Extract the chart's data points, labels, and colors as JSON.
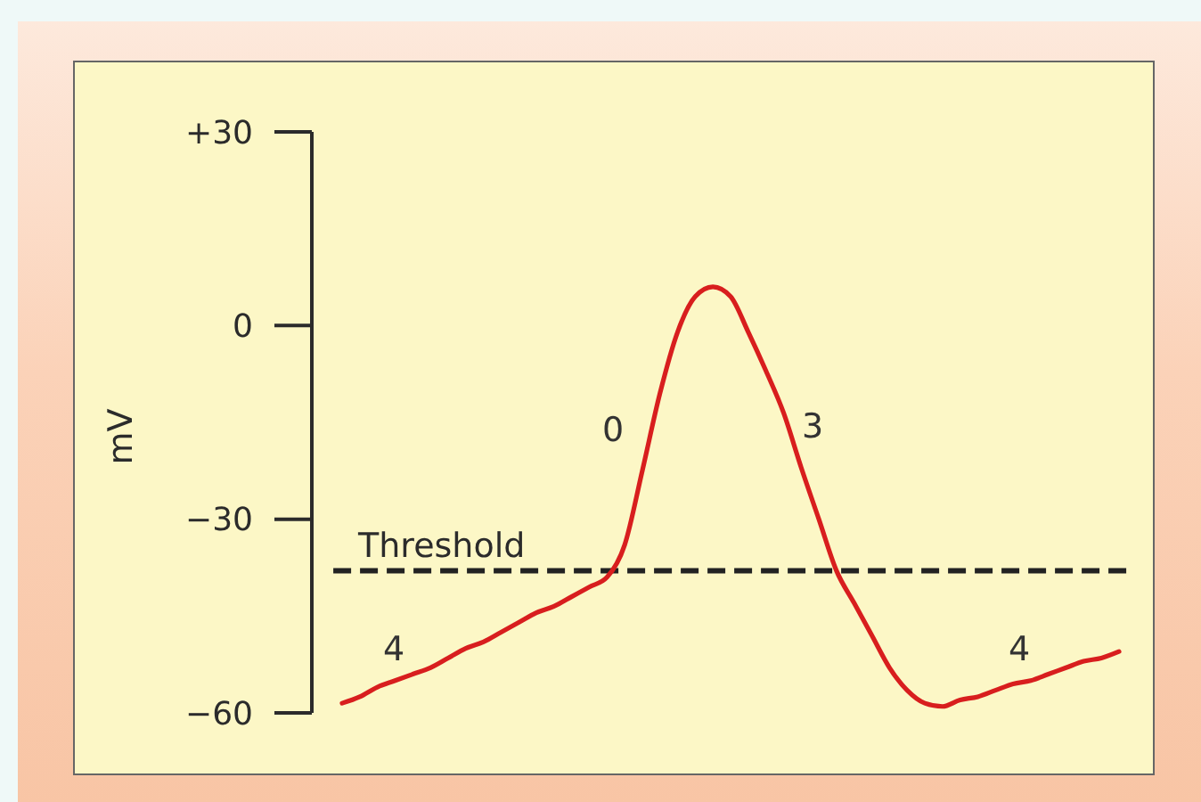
{
  "chart_data": {
    "type": "line",
    "ylabel": "mV",
    "categories": [
      null,
      null,
      null,
      null,
      null,
      null,
      null,
      null,
      null,
      null,
      null,
      null,
      null,
      null,
      null,
      null,
      null,
      null,
      null,
      null,
      null,
      null,
      null,
      null,
      null,
      null,
      null,
      null,
      null,
      null,
      null,
      null,
      null,
      null,
      null,
      null,
      null,
      null,
      null,
      null,
      null,
      null,
      null,
      null,
      null
    ],
    "values": [
      -58.5,
      -57.5,
      -56,
      -55,
      -54,
      -53,
      -51.5,
      -50,
      -49,
      -47.5,
      -46,
      -44.5,
      -43.5,
      -42,
      -40.5,
      -39,
      -34,
      -22.5,
      -10.5,
      -1,
      4.5,
      6,
      4.5,
      -1,
      -7,
      -13.5,
      -22,
      -30,
      -38,
      -43,
      -48,
      -53,
      -56.5,
      -58.5,
      -59,
      -58,
      -57.5,
      -56.5,
      -55.5,
      -55,
      -54,
      -53,
      -52,
      -51.5,
      -50.5
    ],
    "color": "#d81e1e",
    "marker": "none",
    "ylim": [
      -60,
      30
    ],
    "yticks": [
      {
        "value": 30,
        "label": "+30"
      },
      0,
      {
        "value": -30,
        "label": "−30"
      },
      {
        "value": -60,
        "label": "−60"
      }
    ],
    "ref_lines": [
      {
        "axis": "y",
        "value": -38,
        "label": "Threshold",
        "color": "#222222",
        "line_style": "dashed"
      }
    ],
    "annotations": [
      "4",
      "0",
      "3",
      "4"
    ]
  }
}
